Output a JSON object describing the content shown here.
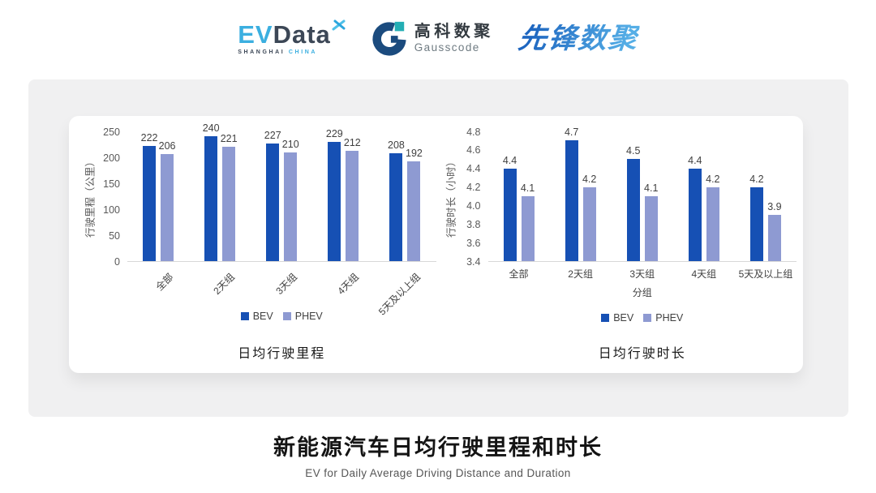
{
  "logos": {
    "evdata": {
      "part1": "EV",
      "part2": "Data",
      "sub1": "SHANGHAI",
      "sub2": "CHINA"
    },
    "gausscode": {
      "cn": "高科数聚",
      "en": "Gausscode"
    },
    "xianfeng": "先锋数聚"
  },
  "colors": {
    "bev": "#1650B4",
    "phev": "#8E9AD2",
    "panel_bg": "#F0F0F1",
    "card_bg": "#FFFFFF",
    "evdata_cyan": "#3BAFE0",
    "evdata_dark": "#3C4756",
    "gausscode_navy": "#1B4B7E",
    "gausscode_teal": "#23AEB4",
    "xianfeng_blue_dark": "#1E66C0",
    "xianfeng_blue_light": "#55AEE6"
  },
  "chart_data": [
    {
      "type": "bar",
      "title": "日均行驶里程",
      "ylabel": "行驶里程（公里）",
      "xlabel": "",
      "categories": [
        "全部",
        "2天组",
        "3天组",
        "4天组",
        "5天及以上组"
      ],
      "series": [
        {
          "name": "BEV",
          "values": [
            222,
            240,
            227,
            229,
            208
          ]
        },
        {
          "name": "PHEV",
          "values": [
            206,
            221,
            210,
            212,
            192
          ]
        }
      ],
      "ylim": [
        0,
        250
      ],
      "ytick_step": 50,
      "rotate_xlabels": true,
      "legend_position": "bottom",
      "grid": false
    },
    {
      "type": "bar",
      "title": "日均行驶时长",
      "ylabel": "行驶时长（小时）",
      "xlabel": "分组",
      "categories": [
        "全部",
        "2天组",
        "3天组",
        "4天组",
        "5天及以上组"
      ],
      "series": [
        {
          "name": "BEV",
          "values": [
            4.4,
            4.7,
            4.5,
            4.4,
            4.2
          ]
        },
        {
          "name": "PHEV",
          "values": [
            4.1,
            4.2,
            4.1,
            4.2,
            3.9
          ]
        }
      ],
      "ylim": [
        3.4,
        4.8
      ],
      "ytick_step": 0.2,
      "rotate_xlabels": false,
      "legend_position": "bottom",
      "grid": false
    }
  ],
  "footer": {
    "title": "新能源汽车日均行驶里程和时长",
    "subtitle": "EV for Daily Average Driving Distance and Duration"
  }
}
